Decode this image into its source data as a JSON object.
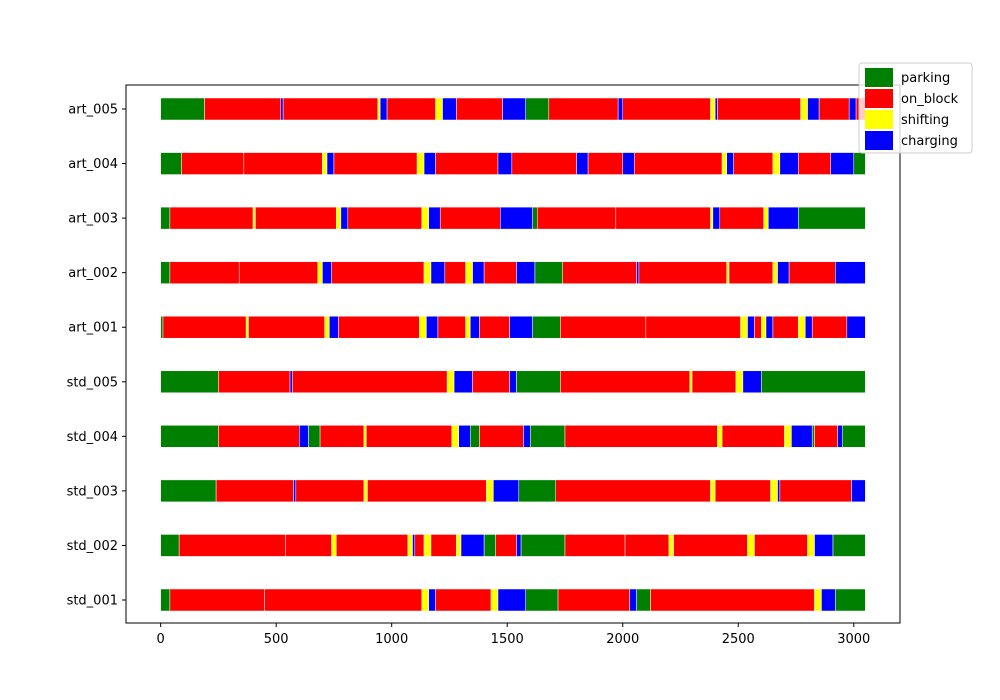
{
  "chart_data": {
    "type": "gantt",
    "title": "",
    "xlabel": "",
    "ylabel": "",
    "xlim": [
      -150,
      3200
    ],
    "x_ticks": [
      0,
      500,
      1000,
      1500,
      2000,
      2500,
      3000
    ],
    "categories": [
      "std_001",
      "std_002",
      "std_003",
      "std_004",
      "std_005",
      "art_001",
      "art_002",
      "art_003",
      "art_004",
      "art_005"
    ],
    "legend": {
      "position": "top-right",
      "entries": [
        {
          "key": "parking",
          "label": "parking",
          "color": "#008000"
        },
        {
          "key": "on_block",
          "label": "on_block",
          "color": "#ff0000"
        },
        {
          "key": "shifting",
          "label": "shifting",
          "color": "#ffff00"
        },
        {
          "key": "charging",
          "label": "charging",
          "color": "#0000ff"
        }
      ]
    },
    "series": [
      {
        "category": "std_001",
        "segments": [
          [
            "parking",
            0,
            40
          ],
          [
            "on_block",
            40,
            450
          ],
          [
            "on_block",
            450,
            1130
          ],
          [
            "shifting",
            1130,
            1160
          ],
          [
            "charging",
            1160,
            1190
          ],
          [
            "on_block",
            1190,
            1430
          ],
          [
            "shifting",
            1430,
            1460
          ],
          [
            "charging",
            1460,
            1580
          ],
          [
            "parking",
            1580,
            1720
          ],
          [
            "on_block",
            1720,
            2030
          ],
          [
            "charging",
            2030,
            2060
          ],
          [
            "parking",
            2060,
            2120
          ],
          [
            "on_block",
            2120,
            2830
          ],
          [
            "shifting",
            2830,
            2860
          ],
          [
            "charging",
            2860,
            2920
          ],
          [
            "parking",
            2920,
            3050
          ]
        ]
      },
      {
        "category": "std_002",
        "segments": [
          [
            "parking",
            0,
            80
          ],
          [
            "on_block",
            80,
            540
          ],
          [
            "on_block",
            540,
            740
          ],
          [
            "shifting",
            740,
            760
          ],
          [
            "on_block",
            760,
            1070
          ],
          [
            "shifting",
            1070,
            1090
          ],
          [
            "charging",
            1090,
            1100
          ],
          [
            "on_block",
            1100,
            1140
          ],
          [
            "shifting",
            1140,
            1170
          ],
          [
            "on_block",
            1170,
            1280
          ],
          [
            "shifting",
            1280,
            1300
          ],
          [
            "charging",
            1300,
            1400
          ],
          [
            "parking",
            1400,
            1450
          ],
          [
            "on_block",
            1450,
            1540
          ],
          [
            "charging",
            1540,
            1560
          ],
          [
            "parking",
            1560,
            1750
          ],
          [
            "on_block",
            1750,
            2010
          ],
          [
            "on_block",
            2010,
            2200
          ],
          [
            "shifting",
            2200,
            2220
          ],
          [
            "on_block",
            2220,
            2540
          ],
          [
            "shifting",
            2540,
            2570
          ],
          [
            "on_block",
            2570,
            2800
          ],
          [
            "shifting",
            2800,
            2830
          ],
          [
            "charging",
            2830,
            2910
          ],
          [
            "parking",
            2910,
            3050
          ]
        ]
      },
      {
        "category": "std_003",
        "segments": [
          [
            "parking",
            0,
            240
          ],
          [
            "on_block",
            240,
            575
          ],
          [
            "charging",
            575,
            585
          ],
          [
            "on_block",
            585,
            880
          ],
          [
            "shifting",
            880,
            895
          ],
          [
            "on_block",
            895,
            1410
          ],
          [
            "shifting",
            1410,
            1440
          ],
          [
            "charging",
            1440,
            1550
          ],
          [
            "parking",
            1550,
            1710
          ],
          [
            "on_block",
            1710,
            2380
          ],
          [
            "shifting",
            2380,
            2400
          ],
          [
            "on_block",
            2400,
            2640
          ],
          [
            "shifting",
            2640,
            2670
          ],
          [
            "charging",
            2670,
            2680
          ],
          [
            "on_block",
            2680,
            2990
          ],
          [
            "charging",
            2990,
            3050
          ]
        ]
      },
      {
        "category": "std_004",
        "segments": [
          [
            "parking",
            0,
            250
          ],
          [
            "on_block",
            250,
            600
          ],
          [
            "charging",
            600,
            640
          ],
          [
            "parking",
            640,
            690
          ],
          [
            "on_block",
            690,
            880
          ],
          [
            "shifting",
            880,
            890
          ],
          [
            "on_block",
            890,
            1260
          ],
          [
            "shifting",
            1260,
            1290
          ],
          [
            "charging",
            1290,
            1340
          ],
          [
            "parking",
            1340,
            1380
          ],
          [
            "on_block",
            1380,
            1570
          ],
          [
            "charging",
            1570,
            1600
          ],
          [
            "parking",
            1600,
            1750
          ],
          [
            "on_block",
            1750,
            2410
          ],
          [
            "shifting",
            2410,
            2430
          ],
          [
            "on_block",
            2430,
            2700
          ],
          [
            "shifting",
            2700,
            2730
          ],
          [
            "charging",
            2730,
            2820
          ],
          [
            "parking",
            2820,
            2830
          ],
          [
            "on_block",
            2830,
            2930
          ],
          [
            "charging",
            2930,
            2950
          ],
          [
            "parking",
            2950,
            3050
          ]
        ]
      },
      {
        "category": "std_005",
        "segments": [
          [
            "parking",
            0,
            250
          ],
          [
            "on_block",
            250,
            560
          ],
          [
            "charging",
            560,
            570
          ],
          [
            "on_block",
            570,
            1240
          ],
          [
            "shifting",
            1240,
            1270
          ],
          [
            "charging",
            1270,
            1350
          ],
          [
            "on_block",
            1350,
            1510
          ],
          [
            "charging",
            1510,
            1540
          ],
          [
            "parking",
            1540,
            1730
          ],
          [
            "on_block",
            1730,
            2290
          ],
          [
            "shifting",
            2290,
            2300
          ],
          [
            "on_block",
            2300,
            2490
          ],
          [
            "shifting",
            2490,
            2520
          ],
          [
            "charging",
            2520,
            2600
          ],
          [
            "parking",
            2600,
            3050
          ]
        ]
      },
      {
        "category": "art_001",
        "segments": [
          [
            "parking",
            0,
            10
          ],
          [
            "on_block",
            10,
            370
          ],
          [
            "shifting",
            370,
            380
          ],
          [
            "on_block",
            380,
            710
          ],
          [
            "shifting",
            710,
            730
          ],
          [
            "charging",
            730,
            770
          ],
          [
            "on_block",
            770,
            1120
          ],
          [
            "shifting",
            1120,
            1150
          ],
          [
            "charging",
            1150,
            1200
          ],
          [
            "on_block",
            1200,
            1320
          ],
          [
            "shifting",
            1320,
            1340
          ],
          [
            "charging",
            1340,
            1380
          ],
          [
            "on_block",
            1380,
            1510
          ],
          [
            "charging",
            1510,
            1610
          ],
          [
            "parking",
            1610,
            1730
          ],
          [
            "on_block",
            1730,
            2100
          ],
          [
            "on_block",
            2100,
            2510
          ],
          [
            "shifting",
            2510,
            2540
          ],
          [
            "charging",
            2540,
            2570
          ],
          [
            "on_block",
            2570,
            2600
          ],
          [
            "shifting",
            2600,
            2620
          ],
          [
            "charging",
            2620,
            2650
          ],
          [
            "on_block",
            2650,
            2760
          ],
          [
            "shifting",
            2760,
            2790
          ],
          [
            "charging",
            2790,
            2820
          ],
          [
            "on_block",
            2820,
            2970
          ],
          [
            "charging",
            2970,
            3050
          ]
        ]
      },
      {
        "category": "art_002",
        "segments": [
          [
            "parking",
            0,
            40
          ],
          [
            "on_block",
            40,
            340
          ],
          [
            "on_block",
            340,
            680
          ],
          [
            "shifting",
            680,
            700
          ],
          [
            "charging",
            700,
            740
          ],
          [
            "on_block",
            740,
            1140
          ],
          [
            "shifting",
            1140,
            1170
          ],
          [
            "charging",
            1170,
            1230
          ],
          [
            "on_block",
            1230,
            1320
          ],
          [
            "shifting",
            1320,
            1350
          ],
          [
            "charging",
            1350,
            1400
          ],
          [
            "on_block",
            1400,
            1540
          ],
          [
            "charging",
            1540,
            1620
          ],
          [
            "parking",
            1620,
            1740
          ],
          [
            "on_block",
            1740,
            2060
          ],
          [
            "charging",
            2060,
            2070
          ],
          [
            "on_block",
            2070,
            2450
          ],
          [
            "shifting",
            2450,
            2460
          ],
          [
            "on_block",
            2460,
            2650
          ],
          [
            "shifting",
            2650,
            2670
          ],
          [
            "charging",
            2670,
            2720
          ],
          [
            "on_block",
            2720,
            2920
          ],
          [
            "charging",
            2920,
            3050
          ]
        ]
      },
      {
        "category": "art_003",
        "segments": [
          [
            "parking",
            0,
            40
          ],
          [
            "on_block",
            40,
            400
          ],
          [
            "shifting",
            400,
            410
          ],
          [
            "on_block",
            410,
            760
          ],
          [
            "shifting",
            760,
            780
          ],
          [
            "charging",
            780,
            810
          ],
          [
            "on_block",
            810,
            1130
          ],
          [
            "shifting",
            1130,
            1160
          ],
          [
            "charging",
            1160,
            1210
          ],
          [
            "on_block",
            1210,
            1470
          ],
          [
            "charging",
            1470,
            1610
          ],
          [
            "parking",
            1610,
            1630
          ],
          [
            "on_block",
            1630,
            1970
          ],
          [
            "on_block",
            1970,
            2380
          ],
          [
            "shifting",
            2380,
            2390
          ],
          [
            "charging",
            2390,
            2420
          ],
          [
            "on_block",
            2420,
            2610
          ],
          [
            "shifting",
            2610,
            2630
          ],
          [
            "charging",
            2630,
            2760
          ],
          [
            "parking",
            2760,
            3050
          ]
        ]
      },
      {
        "category": "art_004",
        "segments": [
          [
            "parking",
            0,
            90
          ],
          [
            "on_block",
            90,
            360
          ],
          [
            "on_block",
            360,
            700
          ],
          [
            "shifting",
            700,
            720
          ],
          [
            "charging",
            720,
            750
          ],
          [
            "on_block",
            750,
            1110
          ],
          [
            "shifting",
            1110,
            1140
          ],
          [
            "charging",
            1140,
            1190
          ],
          [
            "on_block",
            1190,
            1460
          ],
          [
            "charging",
            1460,
            1520
          ],
          [
            "on_block",
            1520,
            1800
          ],
          [
            "charging",
            1800,
            1850
          ],
          [
            "on_block",
            1850,
            2000
          ],
          [
            "charging",
            2000,
            2050
          ],
          [
            "on_block",
            2050,
            2430
          ],
          [
            "shifting",
            2430,
            2450
          ],
          [
            "charging",
            2450,
            2480
          ],
          [
            "on_block",
            2480,
            2650
          ],
          [
            "shifting",
            2650,
            2680
          ],
          [
            "charging",
            2680,
            2760
          ],
          [
            "on_block",
            2760,
            2900
          ],
          [
            "charging",
            2900,
            3000
          ],
          [
            "parking",
            3000,
            3050
          ]
        ]
      },
      {
        "category": "art_005",
        "segments": [
          [
            "parking",
            0,
            190
          ],
          [
            "on_block",
            190,
            520
          ],
          [
            "charging",
            520,
            530
          ],
          [
            "on_block",
            530,
            940
          ],
          [
            "shifting",
            940,
            950
          ],
          [
            "charging",
            950,
            980
          ],
          [
            "on_block",
            980,
            1190
          ],
          [
            "shifting",
            1190,
            1220
          ],
          [
            "charging",
            1220,
            1280
          ],
          [
            "on_block",
            1280,
            1480
          ],
          [
            "charging",
            1480,
            1580
          ],
          [
            "parking",
            1580,
            1680
          ],
          [
            "on_block",
            1680,
            1980
          ],
          [
            "charging",
            1980,
            2000
          ],
          [
            "on_block",
            2000,
            2380
          ],
          [
            "shifting",
            2380,
            2400
          ],
          [
            "charging",
            2400,
            2410
          ],
          [
            "on_block",
            2410,
            2770
          ],
          [
            "shifting",
            2770,
            2800
          ],
          [
            "charging",
            2800,
            2850
          ],
          [
            "on_block",
            2850,
            2980
          ],
          [
            "charging",
            2980,
            3010
          ],
          [
            "on_block",
            3010,
            3050
          ]
        ]
      }
    ]
  }
}
